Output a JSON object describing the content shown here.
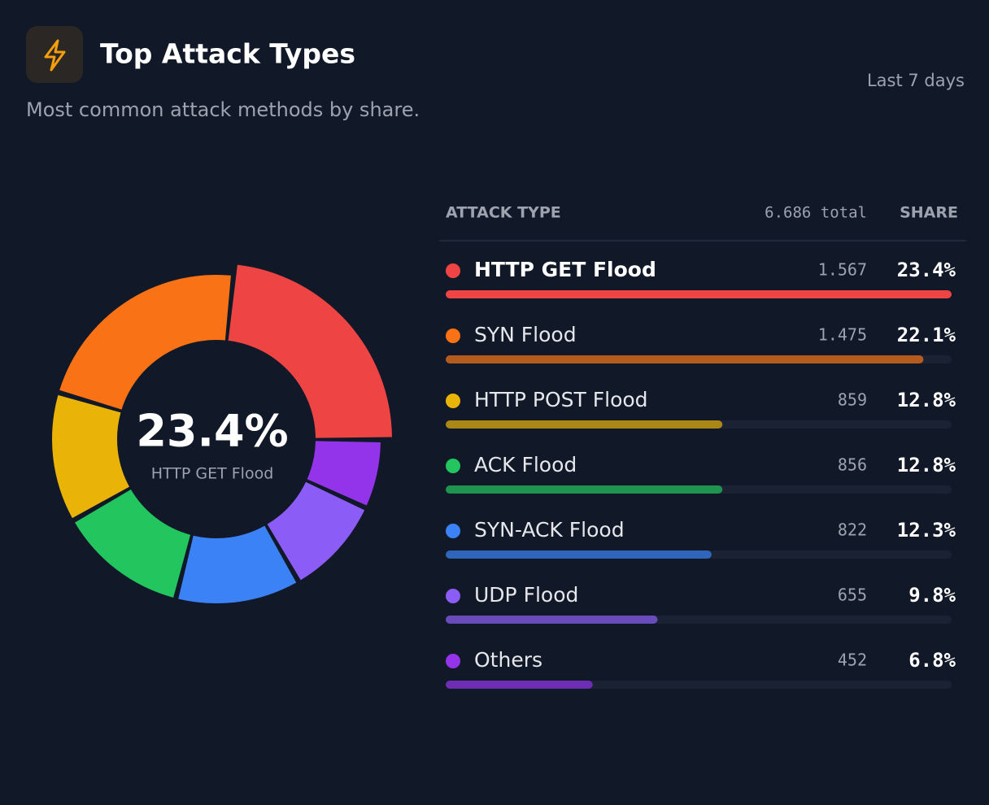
{
  "header": {
    "title": "Top Attack Types",
    "subtitle": "Most common attack methods by share.",
    "range": "Last 7 days"
  },
  "chart_data": {
    "type": "pie",
    "categories": [
      "HTTP GET Flood",
      "SYN Flood",
      "HTTP POST Flood",
      "ACK Flood",
      "SYN-ACK Flood",
      "UDP Flood",
      "Others"
    ],
    "values": [
      23.4,
      22.1,
      12.8,
      12.8,
      12.3,
      9.8,
      6.8
    ],
    "value_labels": [
      "23.4%",
      "22.1%",
      "12.8%",
      "12.8%",
      "12.3%",
      "9.8%",
      "6.8%"
    ],
    "counts": [
      "1.567",
      "1.475",
      "859",
      "856",
      "822",
      "655",
      "452"
    ],
    "colors": [
      "#ef4444",
      "#f97316",
      "#eab308",
      "#22c55e",
      "#3b82f6",
      "#8b5cf6",
      "#9333ea"
    ],
    "columns": {
      "type": "ATTACK TYPE",
      "total": "6.686 total",
      "share": "SHARE"
    }
  }
}
